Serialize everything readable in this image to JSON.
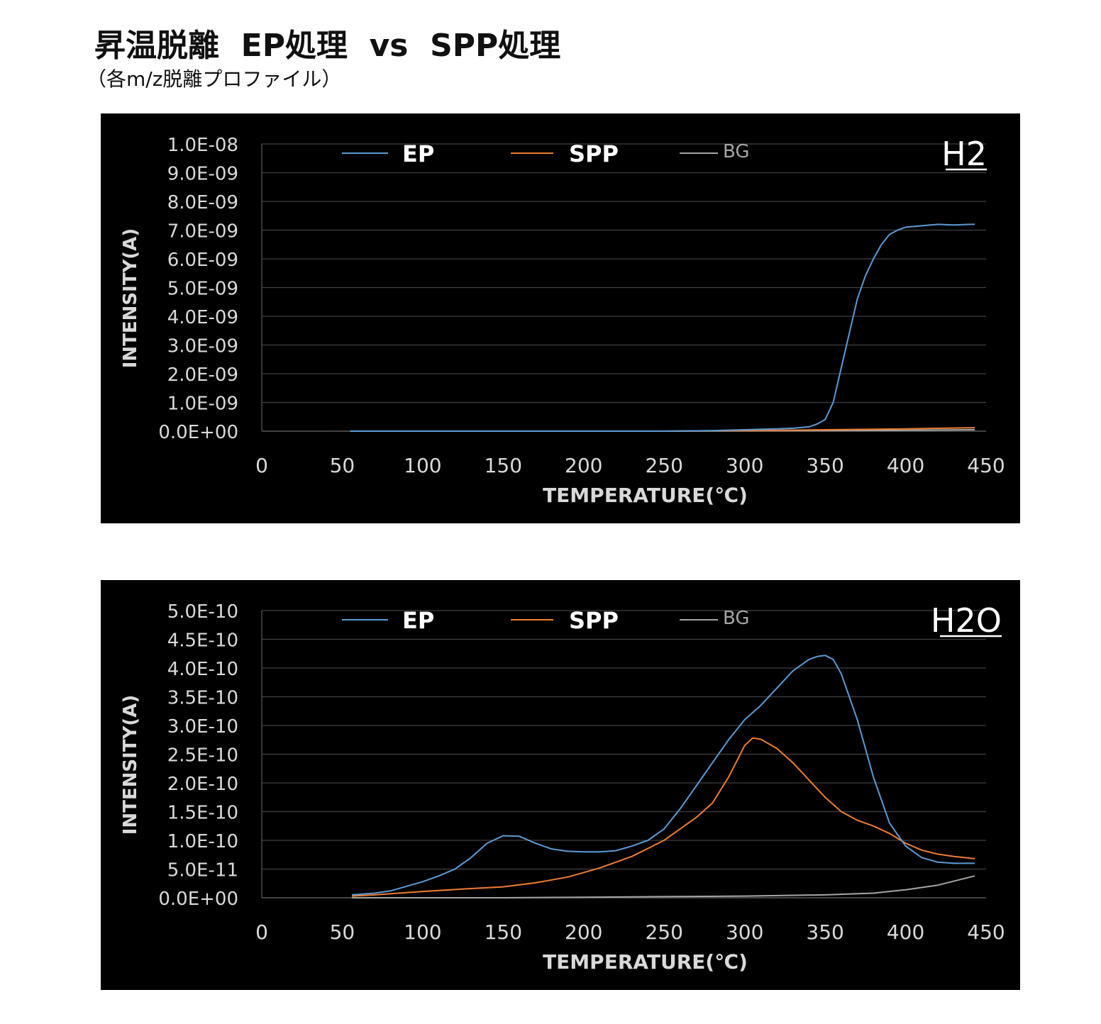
{
  "header": {
    "title": "昇温脱離  EP処理  vs  SPP処理",
    "subtitle": "（各m/z脱離プロファイル）"
  },
  "colors": {
    "EP": "#5b9bd5",
    "SPP": "#ed7d31",
    "BG": "#a5a5a5",
    "panel_bg": "#000000",
    "text": "#d9d9d9",
    "grid": "#404040"
  },
  "chart_data": [
    {
      "type": "line",
      "tag": "H2",
      "xlabel": "TEMPERATURE(℃)",
      "ylabel": "INTENSITY(A)",
      "xlim": [
        0,
        450
      ],
      "ylim": [
        0,
        1e-08
      ],
      "x_ticks": [
        "0",
        "50",
        "100",
        "150",
        "200",
        "250",
        "300",
        "350",
        "400",
        "450"
      ],
      "y_ticks": [
        "0.0E+00",
        "1.0E-09",
        "2.0E-09",
        "3.0E-09",
        "4.0E-09",
        "5.0E-09",
        "6.0E-09",
        "7.0E-09",
        "8.0E-09",
        "9.0E-09",
        "1.0E-08"
      ],
      "grid": "horizontal",
      "legend": "top",
      "series": [
        {
          "name": "EP",
          "x": [
            55,
            100,
            150,
            200,
            250,
            280,
            300,
            320,
            330,
            340,
            345,
            350,
            355,
            360,
            365,
            370,
            375,
            380,
            385,
            390,
            395,
            400,
            410,
            420,
            430,
            440,
            443
          ],
          "y": [
            0,
            0,
            0,
            0,
            0,
            2e-11,
            5e-11,
            8e-11,
            1e-10,
            1.5e-10,
            2.5e-10,
            4e-10,
            1e-09,
            2.2e-09,
            3.4e-09,
            4.6e-09,
            5.4e-09,
            6e-09,
            6.5e-09,
            6.85e-09,
            7e-09,
            7.1e-09,
            7.15e-09,
            7.2e-09,
            7.18e-09,
            7.2e-09,
            7.2e-09
          ]
        },
        {
          "name": "SPP",
          "x": [
            55,
            150,
            250,
            300,
            350,
            400,
            443
          ],
          "y": [
            0,
            0,
            0,
            2e-11,
            5e-11,
            8e-11,
            1.2e-10
          ]
        },
        {
          "name": "BG",
          "x": [
            55,
            150,
            250,
            300,
            350,
            400,
            443
          ],
          "y": [
            0,
            0,
            0,
            1e-11,
            2e-11,
            3e-11,
            5e-11
          ]
        }
      ]
    },
    {
      "type": "line",
      "tag": "H2O",
      "xlabel": "TEMPERATURE(℃)",
      "ylabel": "INTENSITY(A)",
      "xlim": [
        0,
        450
      ],
      "ylim": [
        0,
        5e-10
      ],
      "x_ticks": [
        "0",
        "50",
        "100",
        "150",
        "200",
        "250",
        "300",
        "350",
        "400",
        "450"
      ],
      "y_ticks": [
        "0.0E+00",
        "5.0E-11",
        "1.0E-10",
        "1.5E-10",
        "2.0E-10",
        "2.5E-10",
        "3.0E-10",
        "3.5E-10",
        "4.0E-10",
        "4.5E-10",
        "5.0E-10"
      ],
      "grid": "horizontal",
      "legend": "top",
      "series": [
        {
          "name": "EP",
          "x": [
            56,
            70,
            80,
            90,
            100,
            110,
            120,
            130,
            140,
            150,
            160,
            170,
            180,
            190,
            200,
            210,
            220,
            230,
            240,
            250,
            260,
            270,
            280,
            290,
            300,
            310,
            320,
            330,
            340,
            345,
            350,
            355,
            360,
            370,
            380,
            390,
            400,
            410,
            420,
            430,
            440,
            443
          ],
          "y": [
            5e-12,
            8e-12,
            1.2e-11,
            2e-11,
            2.8e-11,
            3.8e-11,
            5e-11,
            7e-11,
            9.5e-11,
            1.08e-10,
            1.07e-10,
            9.5e-11,
            8.5e-11,
            8.1e-11,
            8e-11,
            8e-11,
            8.2e-11,
            9e-11,
            1e-10,
            1.2e-10,
            1.55e-10,
            1.95e-10,
            2.35e-10,
            2.75e-10,
            3.1e-10,
            3.35e-10,
            3.65e-10,
            3.95e-10,
            4.15e-10,
            4.2e-10,
            4.22e-10,
            4.15e-10,
            3.9e-10,
            3.1e-10,
            2.1e-10,
            1.3e-10,
            9e-11,
            7e-11,
            6.2e-11,
            6e-11,
            6e-11,
            6e-11
          ]
        },
        {
          "name": "SPP",
          "x": [
            56,
            70,
            100,
            130,
            150,
            170,
            190,
            210,
            230,
            250,
            260,
            270,
            280,
            290,
            300,
            305,
            310,
            320,
            330,
            340,
            350,
            360,
            370,
            380,
            390,
            400,
            410,
            420,
            430,
            443
          ],
          "y": [
            3e-12,
            5e-12,
            1.1e-11,
            1.6e-11,
            1.9e-11,
            2.6e-11,
            3.6e-11,
            5.2e-11,
            7.2e-11,
            1e-10,
            1.2e-10,
            1.4e-10,
            1.65e-10,
            2.1e-10,
            2.65e-10,
            2.78e-10,
            2.76e-10,
            2.6e-10,
            2.35e-10,
            2.05e-10,
            1.75e-10,
            1.5e-10,
            1.35e-10,
            1.25e-10,
            1.12e-10,
            9.5e-11,
            8.3e-11,
            7.6e-11,
            7.2e-11,
            6.8e-11
          ]
        },
        {
          "name": "BG",
          "x": [
            56,
            100,
            150,
            200,
            250,
            300,
            350,
            380,
            400,
            420,
            443
          ],
          "y": [
            0,
            0,
            0,
            1e-12,
            2e-12,
            3e-12,
            5e-12,
            8e-12,
            1.4e-11,
            2.2e-11,
            3.8e-11
          ]
        }
      ]
    }
  ]
}
